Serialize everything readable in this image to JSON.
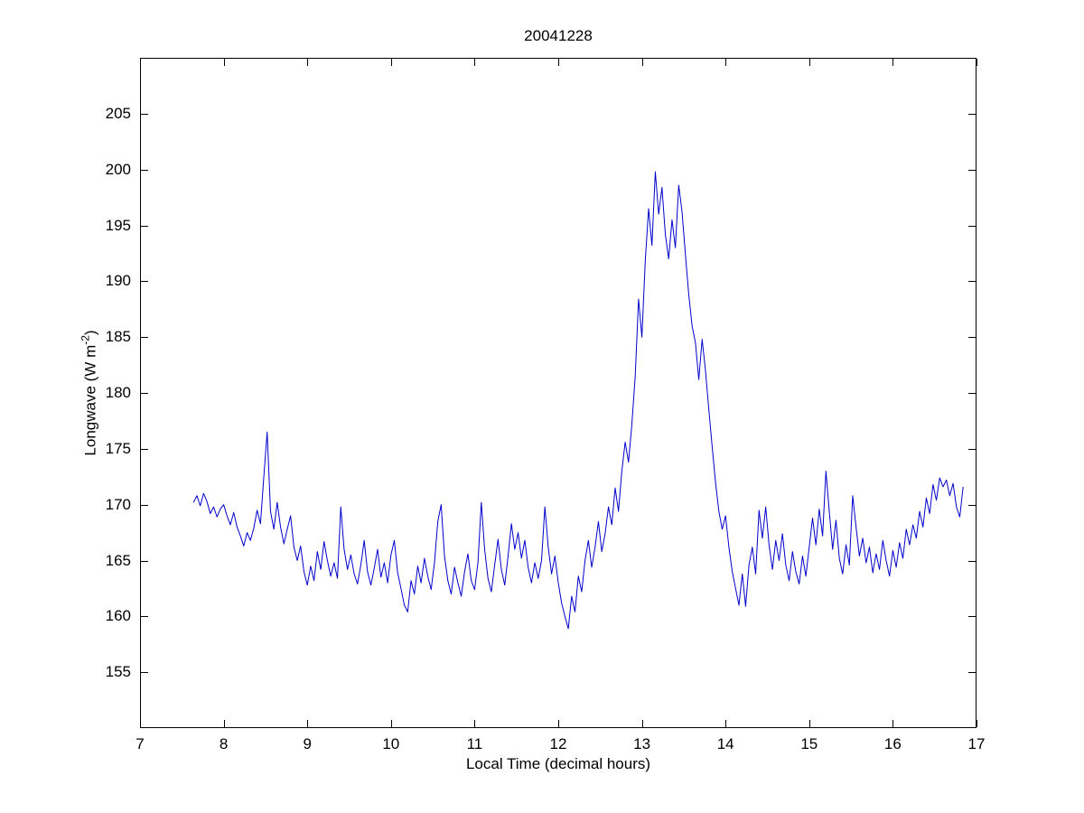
{
  "figure": {
    "title": "20041228",
    "xlabel": "Local Time (decimal hours)",
    "ylabel_prefix": "Longwave (W m",
    "ylabel_superscript": "-2",
    "ylabel_suffix": ")"
  },
  "chart_data": {
    "type": "line",
    "title": "20041228",
    "xlabel": "Local Time (decimal hours)",
    "ylabel": "Longwave (W m^-2)",
    "xlim": [
      7,
      17
    ],
    "ylim": [
      150,
      210
    ],
    "xticks": [
      7,
      8,
      9,
      10,
      11,
      12,
      13,
      14,
      15,
      16,
      17
    ],
    "yticks": [
      155,
      160,
      165,
      170,
      175,
      180,
      185,
      190,
      195,
      200,
      205
    ],
    "grid": false,
    "legend_position": "none",
    "line_color": "#0000CC",
    "axes_color": "#000000",
    "series": [
      {
        "name": "longwave",
        "x_start": 7.64,
        "x_step": 0.04,
        "values": [
          170.2,
          170.8,
          169.9,
          171.0,
          170.3,
          169.2,
          169.8,
          168.9,
          169.6,
          170.0,
          169.0,
          168.2,
          169.3,
          168.0,
          167.2,
          166.3,
          167.5,
          166.8,
          167.9,
          169.5,
          168.3,
          172.5,
          176.5,
          169.4,
          167.8,
          170.2,
          168.0,
          166.5,
          167.8,
          169.0,
          166.2,
          165.0,
          166.3,
          164.0,
          162.8,
          164.5,
          163.2,
          165.8,
          164.2,
          166.7,
          165.0,
          163.6,
          164.8,
          163.4,
          169.8,
          166.0,
          164.2,
          165.5,
          163.8,
          162.9,
          164.6,
          166.8,
          164.0,
          162.8,
          164.3,
          166.0,
          163.5,
          164.8,
          163.0,
          165.5,
          166.8,
          163.9,
          162.5,
          161.0,
          160.4,
          163.2,
          162.0,
          164.5,
          163.0,
          165.2,
          163.6,
          162.4,
          164.8,
          168.5,
          170.0,
          165.4,
          163.2,
          162.0,
          164.4,
          163.0,
          161.8,
          164.0,
          165.6,
          163.2,
          162.4,
          164.8,
          170.2,
          166.0,
          163.4,
          162.2,
          164.6,
          166.9,
          164.2,
          162.8,
          165.4,
          168.3,
          166.0,
          167.5,
          165.2,
          166.8,
          164.4,
          163.0,
          164.8,
          163.4,
          165.0,
          169.8,
          166.2,
          163.8,
          165.4,
          163.0,
          161.2,
          160.0,
          158.9,
          161.8,
          160.4,
          163.6,
          162.2,
          165.0,
          166.8,
          164.4,
          166.2,
          168.5,
          165.8,
          167.4,
          169.8,
          168.2,
          171.5,
          169.4,
          173.0,
          175.6,
          173.8,
          177.2,
          181.5,
          188.4,
          185.0,
          191.8,
          196.5,
          193.2,
          199.8,
          196.0,
          198.4,
          194.2,
          192.0,
          195.5,
          193.0,
          198.6,
          196.2,
          192.4,
          188.8,
          186.0,
          184.5,
          181.2,
          184.8,
          182.0,
          178.5,
          175.2,
          172.0,
          169.4,
          167.8,
          169.0,
          166.2,
          164.0,
          162.5,
          161.0,
          163.8,
          160.9,
          164.6,
          166.2,
          163.8,
          169.5,
          167.0,
          169.8,
          166.4,
          164.2,
          166.8,
          165.0,
          167.4,
          164.6,
          163.2,
          165.8,
          164.0,
          162.9,
          165.4,
          163.6,
          166.2,
          168.8,
          166.4,
          169.6,
          167.2,
          173.0,
          169.4,
          166.0,
          168.6,
          165.2,
          163.8,
          166.4,
          164.6,
          170.8,
          168.0,
          165.4,
          167.0,
          164.8,
          166.2,
          163.9,
          165.6,
          164.2,
          166.8,
          165.0,
          163.6,
          165.9,
          164.4,
          166.6,
          165.2,
          167.8,
          166.4,
          168.2,
          167.0,
          169.4,
          168.0,
          170.6,
          169.2,
          171.8,
          170.4,
          172.4,
          171.6,
          172.2,
          170.8,
          171.9,
          169.8,
          168.9,
          171.6
        ]
      }
    ]
  }
}
